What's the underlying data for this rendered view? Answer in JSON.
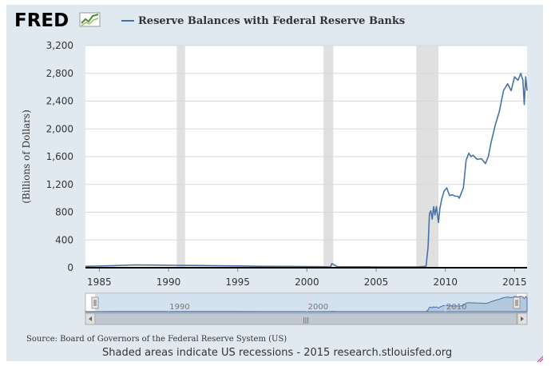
{
  "header": {
    "logo_text": "FRED",
    "logo_icon": "line-chart-icon"
  },
  "footer": {
    "source": "Source: Board of Governors of the Federal Reserve System (US)",
    "note": "Shaded areas indicate US recessions - 2015 research.stlouisfed.org"
  },
  "navigator": {
    "tick_labels": [
      "1990",
      "2000",
      "2010"
    ],
    "scrollbar_grip": "|||"
  },
  "colors": {
    "series": "#4572a7",
    "recession": "#e0e0e0",
    "frame": "#e1e9f0",
    "navigator_fill": "#c5d7ea"
  },
  "chart_data": {
    "type": "line",
    "title": "",
    "xlabel": "",
    "ylabel": "(Billions of Dollars)",
    "xlim": [
      1984.0,
      2015.9
    ],
    "ylim": [
      0,
      3200
    ],
    "x_ticks": [
      "1985",
      "1990",
      "1995",
      "2000",
      "2005",
      "2010",
      "2015"
    ],
    "y_ticks": [
      "0",
      "400",
      "800",
      "1,200",
      "1,600",
      "2,000",
      "2,400",
      "2,800",
      "3,200"
    ],
    "grid": true,
    "legend_position": "top-left",
    "recessions": [
      [
        1990.6,
        1991.2
      ],
      [
        2001.2,
        2001.9
      ],
      [
        2007.9,
        2009.5
      ]
    ],
    "series": [
      {
        "name": "Reserve Balances with Federal Reserve Banks",
        "x": [
          1984.0,
          1986.0,
          1987.5,
          1989.0,
          1990.5,
          1991.5,
          1993.0,
          1995.0,
          1997.0,
          1999.0,
          2001.0,
          2001.7,
          2001.8,
          2002.2,
          2004.0,
          2006.0,
          2008.0,
          2008.6,
          2008.75,
          2008.85,
          2008.95,
          2009.05,
          2009.15,
          2009.25,
          2009.35,
          2009.5,
          2009.6,
          2009.75,
          2009.9,
          2010.1,
          2010.3,
          2010.5,
          2010.7,
          2010.9,
          2011.0,
          2011.3,
          2011.5,
          2011.7,
          2011.85,
          2012.0,
          2012.3,
          2012.6,
          2012.9,
          2013.1,
          2013.3,
          2013.6,
          2013.9,
          2014.2,
          2014.5,
          2014.75,
          2015.0,
          2015.25,
          2015.45,
          2015.6,
          2015.7,
          2015.8,
          2015.9
        ],
        "values": [
          20,
          30,
          40,
          38,
          35,
          32,
          30,
          25,
          20,
          18,
          15,
          12,
          60,
          15,
          14,
          12,
          12,
          20,
          300,
          780,
          820,
          700,
          880,
          760,
          880,
          650,
          850,
          1000,
          1100,
          1150,
          1040,
          1050,
          1030,
          1030,
          1000,
          1150,
          1550,
          1650,
          1600,
          1620,
          1560,
          1570,
          1500,
          1600,
          1800,
          2050,
          2250,
          2550,
          2650,
          2550,
          2750,
          2700,
          2800,
          2700,
          2350,
          2750,
          2550
        ]
      }
    ]
  }
}
